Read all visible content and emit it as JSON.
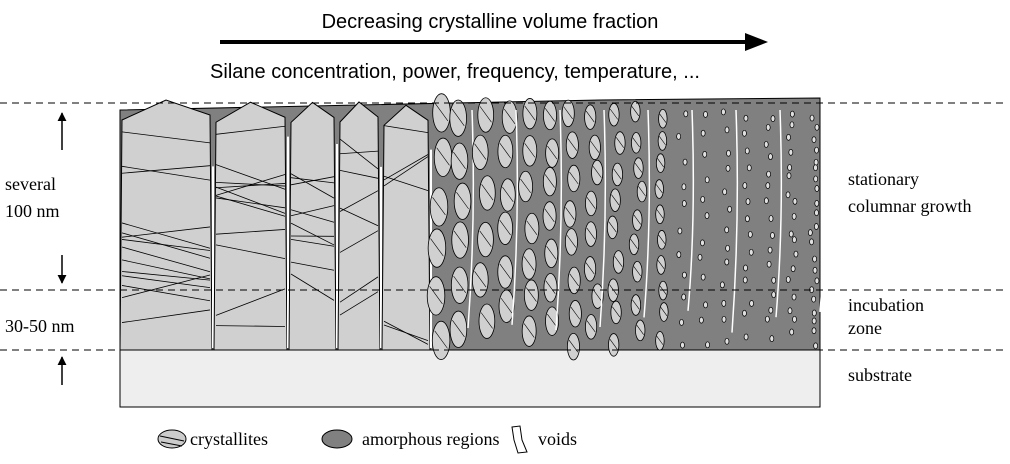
{
  "header": {
    "title": "Decreasing crystalline volume fraction",
    "subtitle": "Silane concentration, power, frequency, temperature, ..."
  },
  "left_labels": {
    "thickness_top": [
      "several",
      "100 nm"
    ],
    "thickness_bottom": "30-50 nm"
  },
  "right_labels": {
    "growth": [
      "stationary",
      "columnar growth"
    ],
    "incubation": [
      "incubation",
      "zone"
    ],
    "substrate": "substrate"
  },
  "legend": [
    "crystallites",
    "amorphous regions",
    "voids"
  ]
}
